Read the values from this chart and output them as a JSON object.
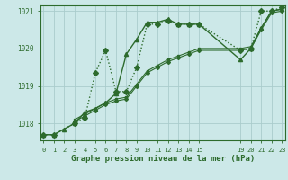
{
  "title": "Graphe pression niveau de la mer (hPa)",
  "bg_color": "#cce8e8",
  "grid_color": "#aacccc",
  "line_color": "#2d6b2d",
  "xlim": [
    -0.3,
    23.3
  ],
  "ylim": [
    1017.55,
    1021.15
  ],
  "yticks": [
    1018,
    1019,
    1020,
    1021
  ],
  "xticks": [
    0,
    1,
    2,
    3,
    4,
    5,
    6,
    7,
    8,
    9,
    10,
    11,
    12,
    13,
    14,
    15,
    19,
    20,
    21,
    22,
    23
  ],
  "series": [
    {
      "x": [
        0,
        1,
        3,
        4,
        5,
        6,
        7,
        8,
        9,
        10,
        11,
        12,
        13,
        14,
        15,
        19,
        20,
        21,
        22,
        23
      ],
      "y": [
        1017.7,
        1017.7,
        1018.0,
        1018.15,
        1019.35,
        1019.95,
        1018.85,
        1018.85,
        1019.5,
        1020.65,
        1020.65,
        1020.75,
        1020.65,
        1020.65,
        1020.65,
        1019.95,
        1020.0,
        1021.0,
        1021.0,
        1021.1
      ],
      "style": ":",
      "marker": "D",
      "markersize": 3,
      "linewidth": 1.0
    },
    {
      "x": [
        0,
        1,
        2,
        3,
        4,
        5,
        6,
        7,
        8,
        9,
        10,
        11,
        12,
        13,
        14,
        15,
        19,
        20,
        21,
        22,
        23
      ],
      "y": [
        1017.7,
        1017.7,
        1017.85,
        1018.0,
        1018.3,
        1018.4,
        1018.55,
        1018.8,
        1019.85,
        1020.25,
        1020.7,
        1020.7,
        1020.78,
        1020.65,
        1020.65,
        1020.65,
        1019.7,
        1020.0,
        1020.55,
        1021.0,
        1021.05
      ],
      "style": "-",
      "marker": "^",
      "markersize": 3,
      "linewidth": 1.0
    },
    {
      "x": [
        3,
        4,
        5,
        6,
        7,
        8,
        9,
        10,
        11,
        12,
        13,
        14,
        15,
        19,
        20,
        21,
        22,
        23
      ],
      "y": [
        1018.05,
        1018.2,
        1018.35,
        1018.5,
        1018.6,
        1018.65,
        1019.0,
        1019.35,
        1019.5,
        1019.65,
        1019.75,
        1019.85,
        1019.95,
        1019.95,
        1020.0,
        1020.5,
        1020.95,
        1021.0
      ],
      "style": "-",
      "marker": "D",
      "markersize": 2,
      "linewidth": 0.8
    },
    {
      "x": [
        3,
        4,
        5,
        6,
        7,
        8,
        9,
        10,
        11,
        12,
        13,
        14,
        15,
        19,
        20,
        21,
        22,
        23
      ],
      "y": [
        1018.1,
        1018.25,
        1018.4,
        1018.55,
        1018.65,
        1018.7,
        1019.05,
        1019.4,
        1019.55,
        1019.7,
        1019.8,
        1019.9,
        1020.0,
        1020.0,
        1020.05,
        1020.55,
        1021.0,
        1021.05
      ],
      "style": "-",
      "marker": "s",
      "markersize": 2,
      "linewidth": 0.8
    }
  ]
}
